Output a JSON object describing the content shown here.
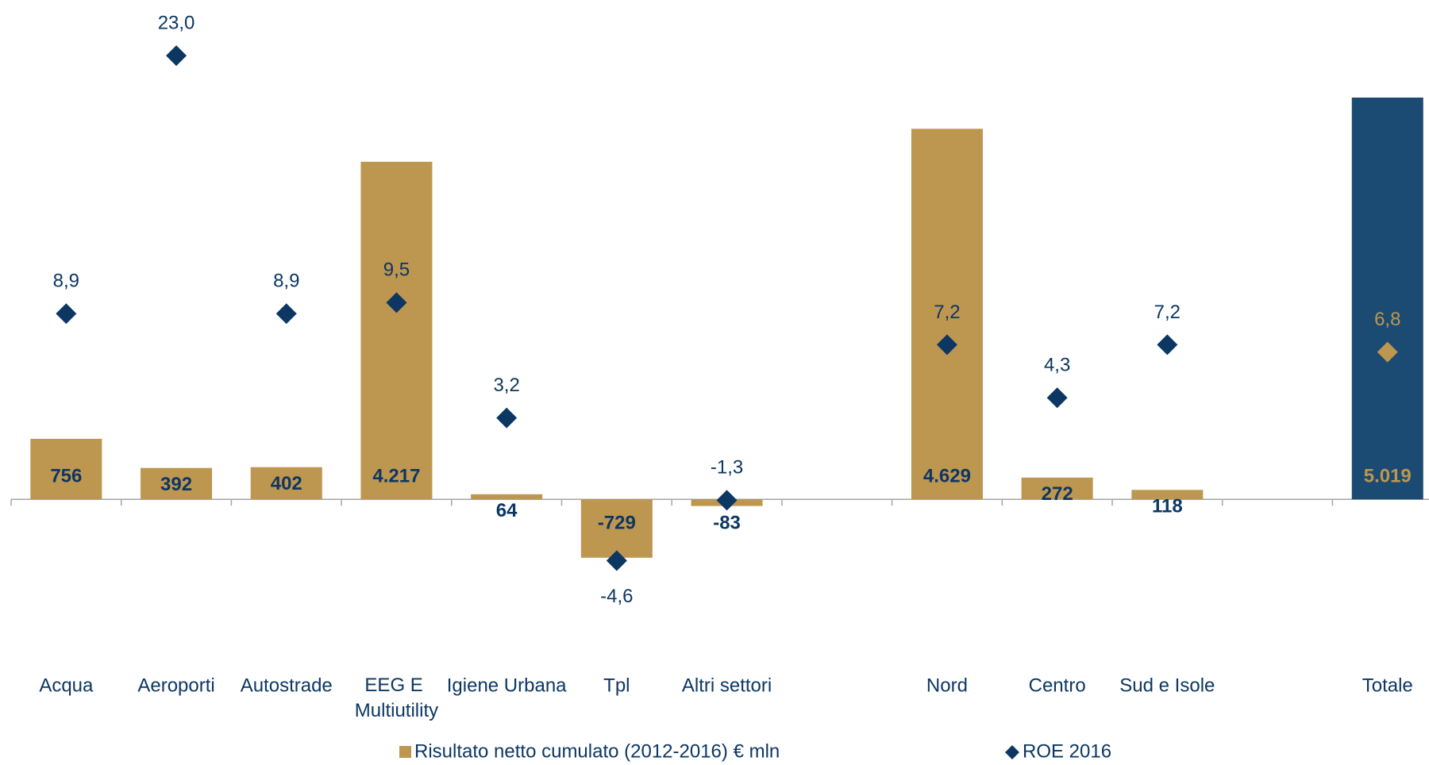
{
  "chart_data": {
    "type": "bar_scatter",
    "categories": [
      "Acqua",
      "Aeroporti",
      "Autostrade",
      "EEG E Multiutility",
      "Igiene Urbana",
      "Tpl",
      "Altri settori",
      null,
      "Nord",
      "Centro",
      "Sud e Isole",
      null,
      "Totale"
    ],
    "series": [
      {
        "name": "Risultato netto cumulato (2012-2016) € mln",
        "type": "bar",
        "color": "#bd9650",
        "colors": [
          "#bd9650",
          "#bd9650",
          "#bd9650",
          "#bd9650",
          "#bd9650",
          "#bd9650",
          "#bd9650",
          null,
          "#bd9650",
          "#bd9650",
          "#bd9650",
          null,
          "#1b4a72"
        ],
        "values": [
          756,
          392,
          402,
          4217,
          64,
          -729,
          -83,
          null,
          4629,
          272,
          118,
          null,
          5019
        ],
        "value_labels": [
          "756",
          "392",
          "402",
          "4.217",
          "64",
          "-729",
          "-83",
          null,
          "4.629",
          "272",
          "118",
          null,
          "5.019"
        ]
      },
      {
        "name": "ROE 2016",
        "type": "scatter",
        "axis": "y2",
        "color": "#0d3763",
        "colors": [
          "#0d3763",
          "#0d3763",
          "#0d3763",
          "#0d3763",
          "#0d3763",
          "#0d3763",
          "#0d3763",
          null,
          "#0d3763",
          "#0d3763",
          "#0d3763",
          null,
          "#bd9650"
        ],
        "values": [
          8.9,
          23.0,
          8.9,
          9.5,
          3.2,
          -4.6,
          -1.3,
          null,
          7.2,
          4.3,
          7.2,
          null,
          6.8
        ],
        "value_labels": [
          "8,9",
          "23,0",
          "8,9",
          "9,5",
          "3,2",
          "-4,6",
          "-1,3",
          null,
          "7,2",
          "4,3",
          "7,2",
          null,
          "6,8"
        ]
      }
    ],
    "ylim": [
      -2000,
      6000
    ],
    "y2lim": [
      -10,
      25
    ],
    "legend": "bottom"
  }
}
